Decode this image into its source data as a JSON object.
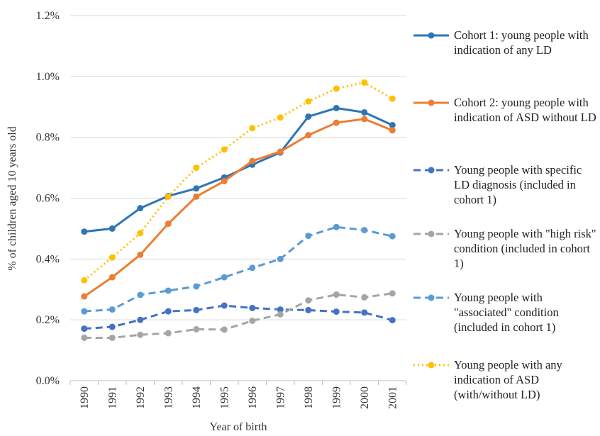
{
  "chart_data": {
    "type": "line",
    "y_label": "% of children aged 10 years old",
    "x_label": "Year of birth",
    "categories": [
      "1990",
      "1991",
      "1992",
      "1993",
      "1994",
      "1995",
      "1996",
      "1997",
      "1998",
      "1999",
      "2000",
      "2001"
    ],
    "ylim": [
      0,
      1.2
    ],
    "yticks": [
      {
        "value": 0,
        "label": "0.0%"
      },
      {
        "value": 0.2,
        "label": "0.2%"
      },
      {
        "value": 0.4,
        "label": "0.4%"
      },
      {
        "value": 0.6,
        "label": "0.6%"
      },
      {
        "value": 0.8,
        "label": "0.8%"
      },
      {
        "value": 1.0,
        "label": "1.0%"
      },
      {
        "value": 1.2,
        "label": "1.2%"
      }
    ],
    "grid": true,
    "legend": "right",
    "series": [
      {
        "name": "Cohort 1: young people with indication of any LD",
        "color": "#2e75b6",
        "dash": "solid",
        "values": [
          0.49,
          0.5,
          0.567,
          0.607,
          0.632,
          0.668,
          0.71,
          0.75,
          0.868,
          0.896,
          0.882,
          0.84
        ]
      },
      {
        "name": "Cohort 2: young people with indication of ASD without LD",
        "color": "#ed7d31",
        "dash": "solid",
        "values": [
          0.277,
          0.34,
          0.414,
          0.516,
          0.605,
          0.656,
          0.722,
          0.753,
          0.807,
          0.848,
          0.86,
          0.823
        ]
      },
      {
        "name": "Young people with specific LD diagnosis (included in cohort 1)",
        "color": "#4472c4",
        "dash": "dashed",
        "values": [
          0.171,
          0.177,
          0.2,
          0.228,
          0.232,
          0.247,
          0.239,
          0.234,
          0.232,
          0.227,
          0.224,
          0.199
        ]
      },
      {
        "name": "Young people with \"high risk\" condition (included in cohort 1)",
        "color": "#a5a5a5",
        "dash": "dashed",
        "values": [
          0.141,
          0.141,
          0.151,
          0.156,
          0.169,
          0.168,
          0.197,
          0.218,
          0.264,
          0.283,
          0.274,
          0.287
        ]
      },
      {
        "name": "Young people with \"associated\" condition (included in cohort 1)",
        "color": "#5b9bd5",
        "dash": "dashed",
        "values": [
          0.228,
          0.234,
          0.282,
          0.296,
          0.31,
          0.34,
          0.371,
          0.4,
          0.476,
          0.505,
          0.495,
          0.475
        ]
      },
      {
        "name": "Young people with any indication of ASD (with/without LD)",
        "color": "#ffc000",
        "dash": "dotted",
        "values": [
          0.33,
          0.405,
          0.485,
          0.605,
          0.7,
          0.76,
          0.83,
          0.865,
          0.918,
          0.96,
          0.98,
          0.927
        ]
      }
    ]
  }
}
